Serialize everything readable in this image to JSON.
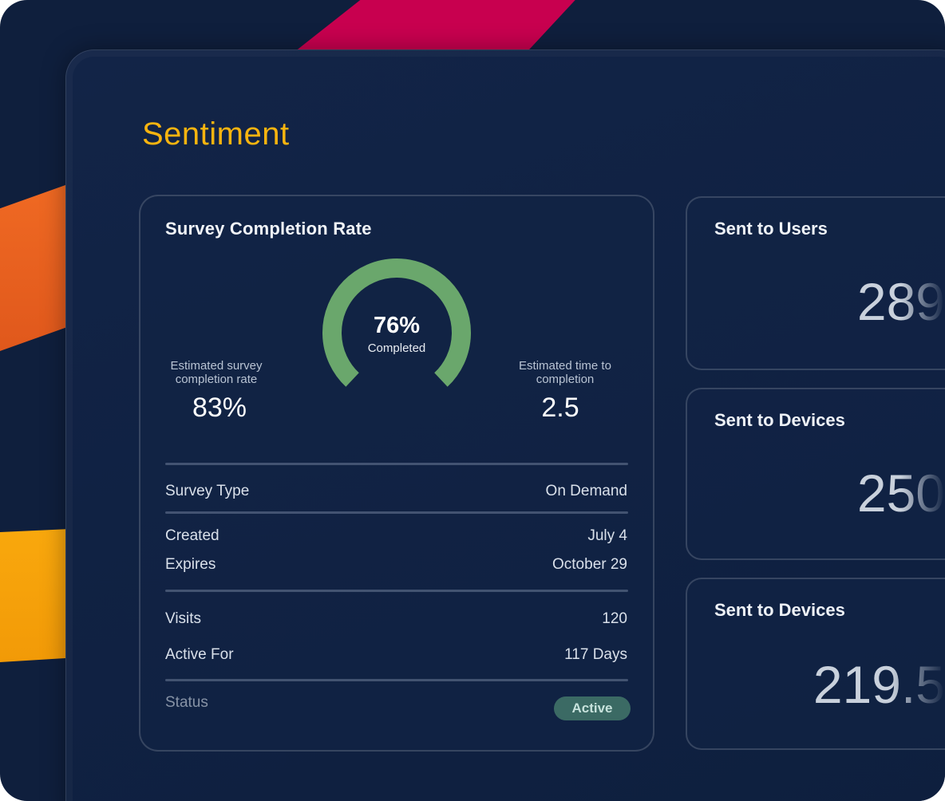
{
  "page": {
    "title": "Sentiment"
  },
  "colors": {
    "title": "#f9b40f",
    "ring": "#6aa76c",
    "badge_bg": "#3b6a64",
    "background": "#0f1f3d"
  },
  "survey": {
    "card_title": "Survey Completion Rate",
    "completed_percent": 76,
    "completed_value": "76%",
    "completed_label": "Completed",
    "estimated_rate_label": "Estimated survey completion rate",
    "estimated_rate_value": "83%",
    "estimated_time_label": "Estimated time to completion",
    "estimated_time_value": "2.5",
    "details": {
      "survey_type_label": "Survey Type",
      "survey_type_value": "On Demand",
      "created_label": "Created",
      "created_value": "July 4",
      "expires_label": "Expires",
      "expires_value": "October 29",
      "visits_label": "Visits",
      "visits_value": "120",
      "active_for_label": "Active For",
      "active_for_value": "117 Days",
      "status_label": "Status",
      "status_value": "Active"
    }
  },
  "stats": [
    {
      "title": "Sent to Users",
      "value": "289"
    },
    {
      "title": "Sent to Devices",
      "value": "250"
    },
    {
      "title": "Sent to Devices",
      "value": "219.5"
    }
  ]
}
